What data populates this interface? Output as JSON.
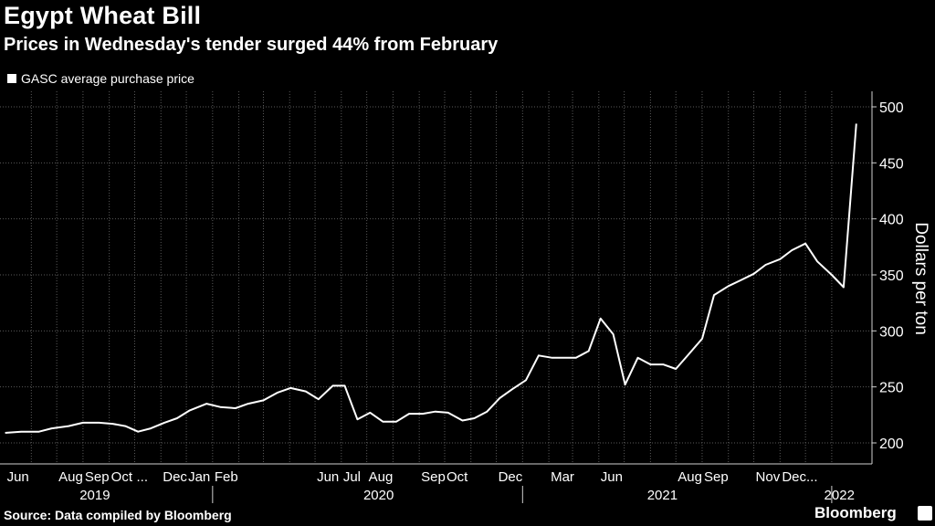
{
  "chart_data": {
    "type": "line",
    "title": "Egypt Wheat Bill",
    "subtitle": "Prices in Wednesday's tender surged 44% from February",
    "ylabel": "Dollars per ton",
    "ylim": [
      195,
      505
    ],
    "yticks": [
      200,
      250,
      300,
      350,
      400,
      450,
      500
    ],
    "grid": true,
    "legend_position": "top-left",
    "series": [
      {
        "name": "GASC average purchase price",
        "color": "#ffffff",
        "points": [
          [
            "2019-05-01",
            209
          ],
          [
            "2019-05-20",
            210
          ],
          [
            "2019-06-10",
            210
          ],
          [
            "2019-06-25",
            213
          ],
          [
            "2019-07-15",
            215
          ],
          [
            "2019-08-01",
            218
          ],
          [
            "2019-08-20",
            218
          ],
          [
            "2019-09-05",
            217
          ],
          [
            "2019-09-20",
            215
          ],
          [
            "2019-10-05",
            210
          ],
          [
            "2019-10-20",
            213
          ],
          [
            "2019-11-05",
            218
          ],
          [
            "2019-11-20",
            222
          ],
          [
            "2019-12-05",
            229
          ],
          [
            "2019-12-25",
            235
          ],
          [
            "2020-01-10",
            232
          ],
          [
            "2020-01-28",
            231
          ],
          [
            "2020-02-12",
            235
          ],
          [
            "2020-03-01",
            238
          ],
          [
            "2020-03-18",
            245
          ],
          [
            "2020-04-02",
            249
          ],
          [
            "2020-04-20",
            246
          ],
          [
            "2020-05-05",
            239
          ],
          [
            "2020-05-22",
            251
          ],
          [
            "2020-06-05",
            251
          ],
          [
            "2020-06-20",
            221
          ],
          [
            "2020-07-05",
            227
          ],
          [
            "2020-07-20",
            219
          ],
          [
            "2020-08-05",
            219
          ],
          [
            "2020-08-20",
            226
          ],
          [
            "2020-09-05",
            226
          ],
          [
            "2020-09-20",
            228
          ],
          [
            "2020-10-05",
            227
          ],
          [
            "2020-10-22",
            220
          ],
          [
            "2020-11-05",
            222
          ],
          [
            "2020-11-20",
            228
          ],
          [
            "2020-12-05",
            240
          ],
          [
            "2020-12-20",
            248
          ],
          [
            "2021-01-05",
            256
          ],
          [
            "2021-01-20",
            278
          ],
          [
            "2021-02-05",
            276
          ],
          [
            "2021-02-20",
            276
          ],
          [
            "2021-03-05",
            276
          ],
          [
            "2021-03-20",
            282
          ],
          [
            "2021-04-03",
            311
          ],
          [
            "2021-04-18",
            297
          ],
          [
            "2021-05-02",
            252
          ],
          [
            "2021-05-17",
            276
          ],
          [
            "2021-06-01",
            270
          ],
          [
            "2021-06-16",
            270
          ],
          [
            "2021-07-01",
            266
          ],
          [
            "2021-07-16",
            279
          ],
          [
            "2021-08-01",
            293
          ],
          [
            "2021-08-15",
            332
          ],
          [
            "2021-09-01",
            340
          ],
          [
            "2021-09-15",
            345
          ],
          [
            "2021-10-01",
            351
          ],
          [
            "2021-10-15",
            359
          ],
          [
            "2021-11-01",
            364
          ],
          [
            "2021-11-15",
            372
          ],
          [
            "2021-12-01",
            378
          ],
          [
            "2021-12-15",
            362
          ],
          [
            "2022-01-01",
            350
          ],
          [
            "2022-01-15",
            339
          ],
          [
            "2022-01-30",
            485
          ]
        ]
      }
    ],
    "x_month_labels": [
      [
        "2019-05-01",
        "Jun"
      ],
      [
        "2019-07-01",
        "Aug"
      ],
      [
        "2019-08-01",
        "Sep"
      ],
      [
        "2019-09-01",
        "Oct"
      ],
      [
        "2019-10-01",
        "..."
      ],
      [
        "2019-11-01",
        "Dec"
      ],
      [
        "2019-12-01",
        "Jan"
      ],
      [
        "2020-01-01",
        "Feb"
      ],
      [
        "2020-05-01",
        "Jun"
      ],
      [
        "2020-06-01",
        "Jul"
      ],
      [
        "2020-07-01",
        "Aug"
      ],
      [
        "2020-09-01",
        "Sep"
      ],
      [
        "2020-10-01",
        "Oct"
      ],
      [
        "2020-12-01",
        "Dec"
      ],
      [
        "2021-02-01",
        "Mar"
      ],
      [
        "2021-04-01",
        "Jun"
      ],
      [
        "2021-07-01",
        "Aug"
      ],
      [
        "2021-08-01",
        "Sep"
      ],
      [
        "2021-10-01",
        "Nov"
      ],
      [
        "2021-11-01",
        "Dec..."
      ]
    ],
    "x_year_labels": [
      [
        "2019-08-15",
        "2019"
      ],
      [
        "2020-07-15",
        "2020"
      ],
      [
        "2021-06-15",
        "2021"
      ],
      [
        "2022-01-10",
        "2022"
      ]
    ],
    "x_gridlines": [
      "2019-06-01",
      "2019-07-01",
      "2019-08-01",
      "2019-09-01",
      "2019-10-01",
      "2019-11-01",
      "2019-12-01",
      "2020-01-01",
      "2020-02-01",
      "2020-03-01",
      "2020-04-01",
      "2020-05-01",
      "2020-06-01",
      "2020-07-01",
      "2020-08-01",
      "2020-09-01",
      "2020-10-01",
      "2020-11-01",
      "2020-12-01",
      "2021-01-01",
      "2021-02-01",
      "2021-03-01",
      "2021-04-01",
      "2021-05-01",
      "2021-06-01",
      "2021-07-01",
      "2021-08-01",
      "2021-09-01",
      "2021-10-01",
      "2021-11-01",
      "2021-12-01",
      "2022-01-01"
    ],
    "year_boundaries": [
      "2020-01-01",
      "2021-01-01",
      "2022-01-01"
    ]
  },
  "footer": {
    "source": "Source: Data compiled by Bloomberg",
    "brand": "Bloomberg"
  }
}
